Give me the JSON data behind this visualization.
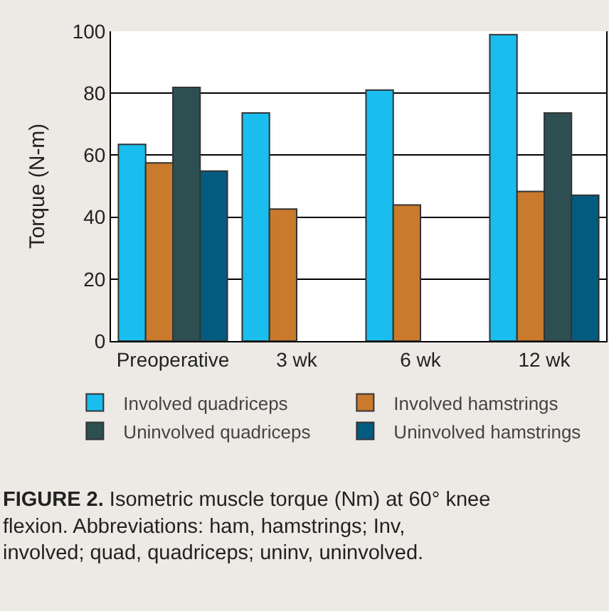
{
  "chart_data": {
    "type": "bar",
    "ylabel": "Torque (N-m)",
    "categories": [
      "Preoperative",
      "3 wk",
      "6 wk",
      "12 wk"
    ],
    "series": [
      {
        "name": "Involved quadriceps",
        "color": "#19bdee",
        "values": [
          63.5,
          73.6,
          81,
          98.9
        ]
      },
      {
        "name": "Involved hamstrings",
        "color": "#ca7a2c",
        "values": [
          57.5,
          42.6,
          43.9,
          48.3
        ]
      },
      {
        "name": "Uninvolved quadriceps",
        "color": "#2d4f52",
        "values": [
          81.9,
          null,
          null,
          73.6
        ]
      },
      {
        "name": "Uninvolved hamstrings",
        "color": "#045b80",
        "values": [
          54.9,
          null,
          null,
          47.1
        ]
      }
    ],
    "ylim": [
      0,
      100
    ],
    "yticks": [
      0,
      20,
      40,
      60,
      80,
      100
    ],
    "grid": "y",
    "legend": "bottom",
    "annotations": [
      "FIGURE 2.",
      "Isometric muscle torque (Nm) at 60° knee flexion. Abbreviations: ham, hamstrings; Inv, involved; quad, quadriceps; uninv, uninvolved."
    ]
  }
}
